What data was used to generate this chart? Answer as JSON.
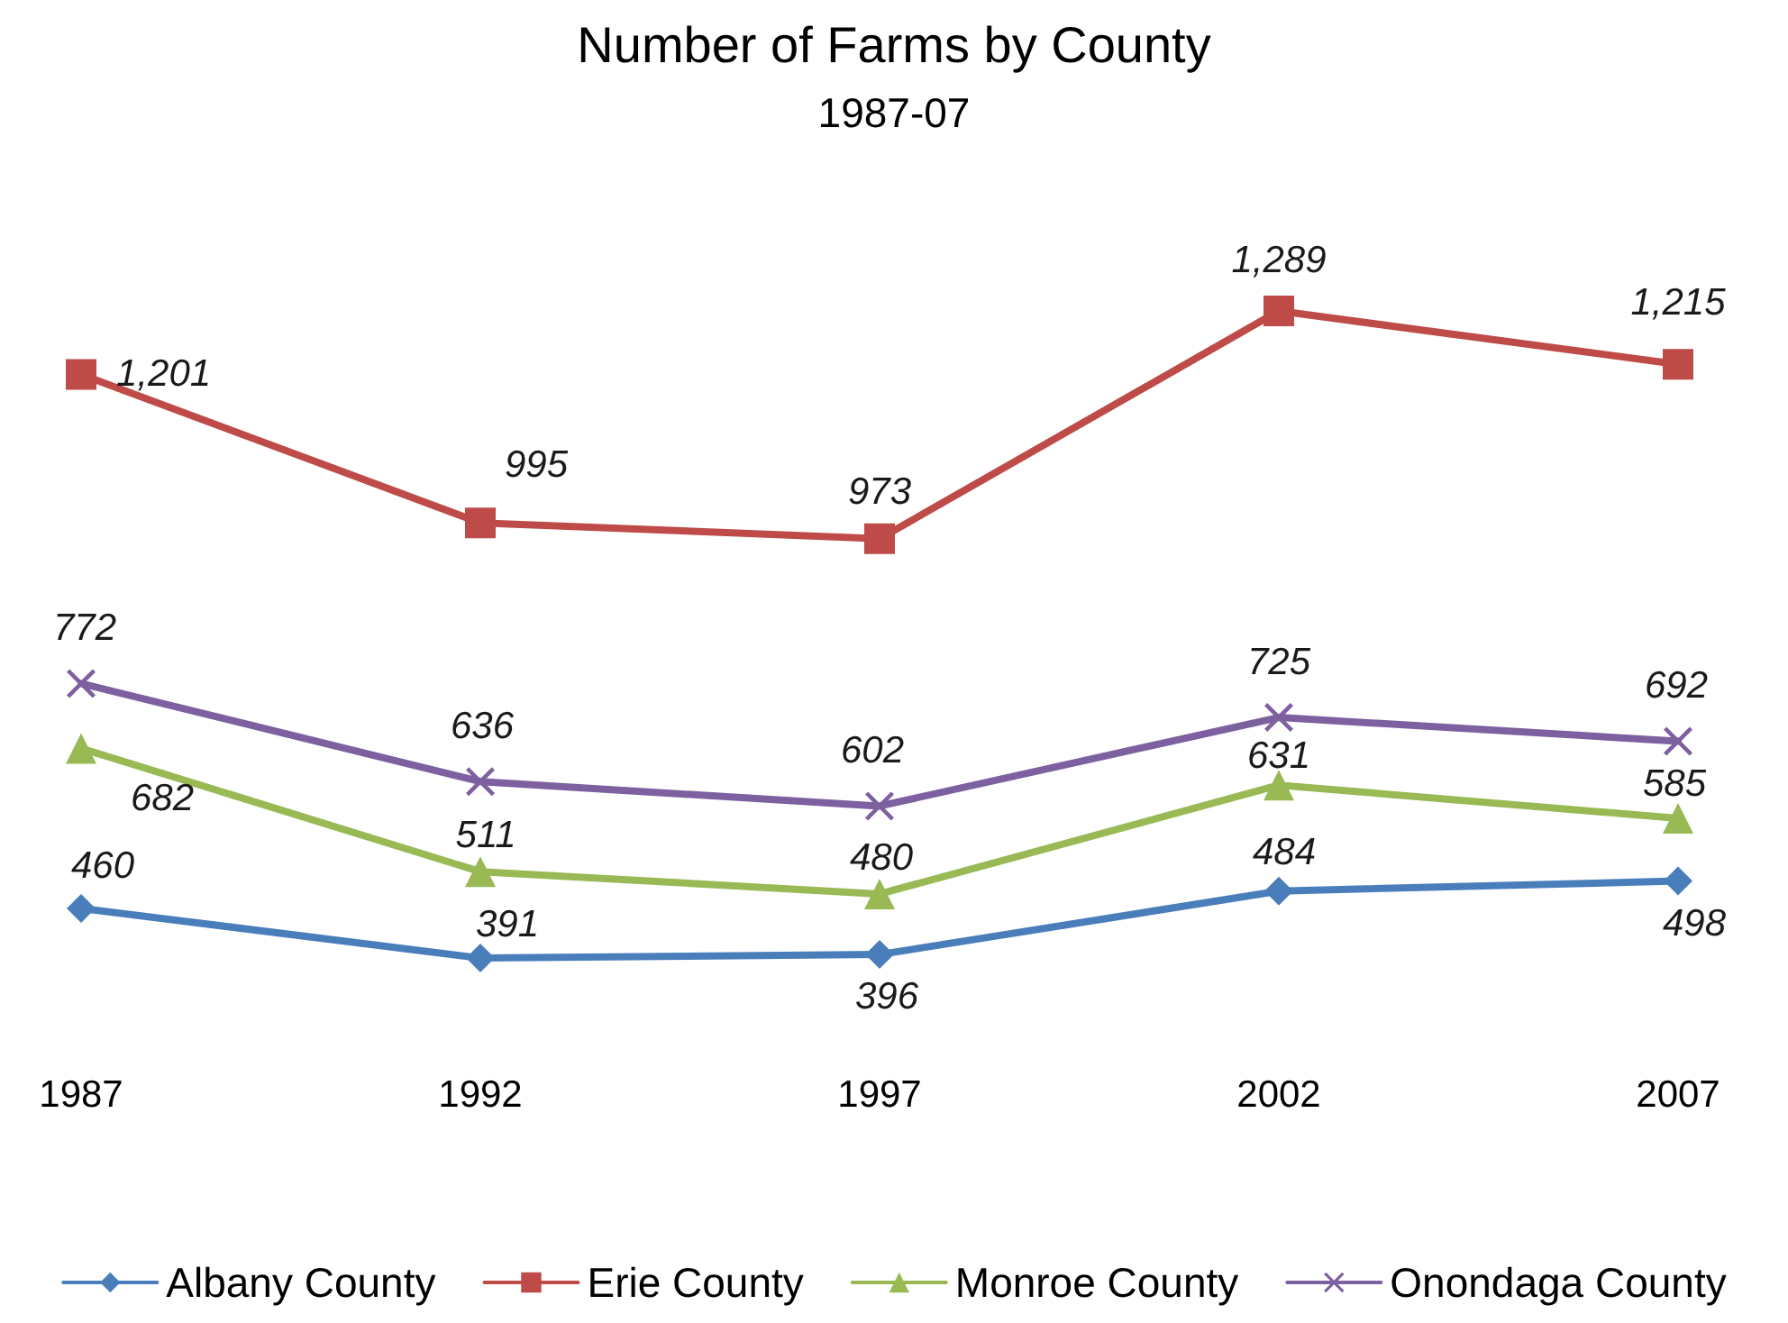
{
  "chart_data": {
    "type": "line",
    "title": "Number of Farms by County",
    "subtitle": "1987-07",
    "categories": [
      "1987",
      "1992",
      "1997",
      "2002",
      "2007"
    ],
    "series": [
      {
        "name": "Albany County",
        "color": "#4a7ebb",
        "marker": "diamond",
        "values": [
          460,
          391,
          396,
          484,
          498
        ],
        "value_labels": [
          "460",
          "391",
          "396",
          "484",
          "498"
        ]
      },
      {
        "name": "Erie County",
        "color": "#be4b48",
        "marker": "square",
        "values": [
          1201,
          995,
          973,
          1289,
          1215
        ],
        "value_labels": [
          "1,201",
          "995",
          "973",
          "1,289",
          "1,215"
        ]
      },
      {
        "name": "Monroe County",
        "color": "#98b954",
        "marker": "triangle",
        "values": [
          682,
          511,
          480,
          631,
          585
        ],
        "value_labels": [
          "682",
          "511",
          "480",
          "631",
          "585"
        ]
      },
      {
        "name": "Onondaga County",
        "color": "#7d60a0",
        "marker": "cross",
        "values": [
          772,
          636,
          602,
          725,
          692
        ],
        "value_labels": [
          "772",
          "636",
          "602",
          "725",
          "692"
        ]
      }
    ],
    "grid": false,
    "legend": "bottom"
  }
}
